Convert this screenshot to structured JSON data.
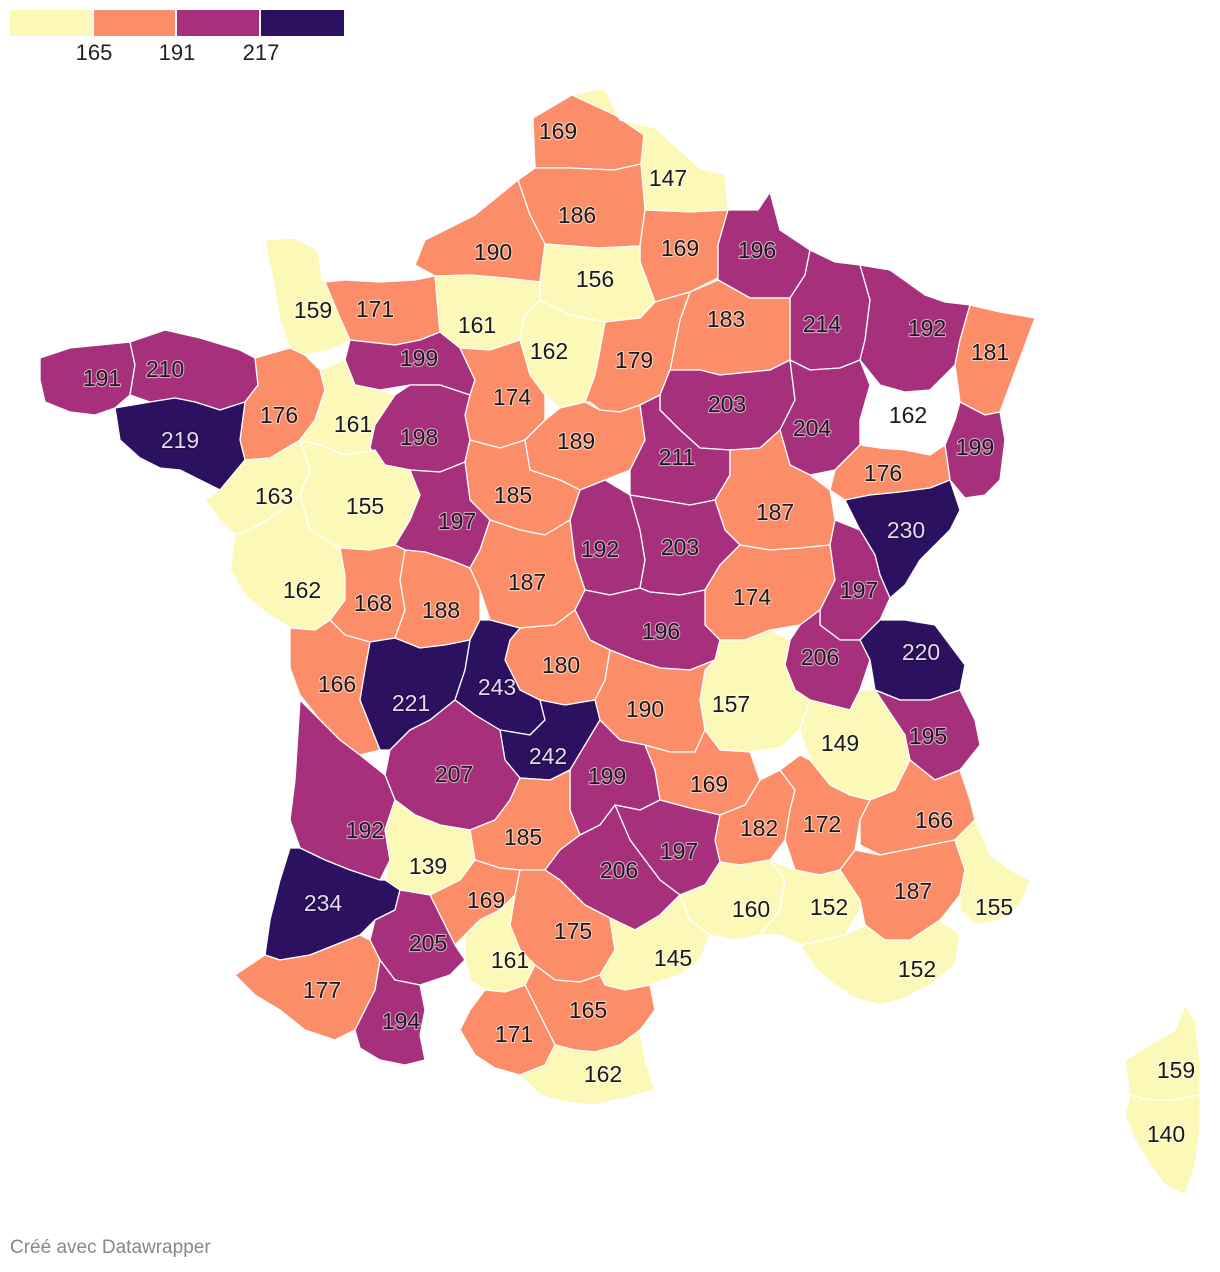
{
  "legend": {
    "colors": [
      "#fcf8b8",
      "#fb8d68",
      "#a7307d",
      "#2b1160"
    ],
    "ticks": [
      "165",
      "191",
      "217"
    ]
  },
  "credit": "Créé avec Datawrapper",
  "palette": {
    "low": "#fcf8b8",
    "mid_low": "#fb8d68",
    "mid_high": "#a7307d",
    "high": "#2b1160",
    "border": "#ffffff"
  },
  "departments": [
    {
      "value": 169
    },
    {
      "value": 147
    },
    {
      "value": 186
    },
    {
      "value": 190
    },
    {
      "value": 169
    },
    {
      "value": 196
    },
    {
      "value": 156
    },
    {
      "value": 159
    },
    {
      "value": 171
    },
    {
      "value": 161
    },
    {
      "value": 214
    },
    {
      "value": 183
    },
    {
      "value": 192
    },
    {
      "value": 181
    },
    {
      "value": 191
    },
    {
      "value": 210
    },
    {
      "value": 199
    },
    {
      "value": 162
    },
    {
      "value": 179
    },
    {
      "value": 176
    },
    {
      "value": 161
    },
    {
      "value": 174
    },
    {
      "value": 203
    },
    {
      "value": 162
    },
    {
      "value": 219
    },
    {
      "value": 198
    },
    {
      "value": 189
    },
    {
      "value": 204
    },
    {
      "value": 199
    },
    {
      "value": 211
    },
    {
      "value": 176
    },
    {
      "value": 163
    },
    {
      "value": 155
    },
    {
      "value": 185
    },
    {
      "value": 197
    },
    {
      "value": 187
    },
    {
      "value": 230
    },
    {
      "value": 192
    },
    {
      "value": 203
    },
    {
      "value": 162
    },
    {
      "value": 168
    },
    {
      "value": 188
    },
    {
      "value": 187
    },
    {
      "value": 174
    },
    {
      "value": 197
    },
    {
      "value": 196
    },
    {
      "value": 206
    },
    {
      "value": 220
    },
    {
      "value": 180
    },
    {
      "value": 166
    },
    {
      "value": 221
    },
    {
      "value": 243
    },
    {
      "value": 157
    },
    {
      "value": 190
    },
    {
      "value": 149
    },
    {
      "value": 195
    },
    {
      "value": 242
    },
    {
      "value": 207
    },
    {
      "value": 199
    },
    {
      "value": 169
    },
    {
      "value": 192
    },
    {
      "value": 182
    },
    {
      "value": 172
    },
    {
      "value": 166
    },
    {
      "value": 185
    },
    {
      "value": 139
    },
    {
      "value": 197
    },
    {
      "value": 206
    },
    {
      "value": 160
    },
    {
      "value": 152
    },
    {
      "value": 187
    },
    {
      "value": 155
    },
    {
      "value": 234
    },
    {
      "value": 169
    },
    {
      "value": 205
    },
    {
      "value": 175
    },
    {
      "value": 145
    },
    {
      "value": 161
    },
    {
      "value": 152
    },
    {
      "value": 177
    },
    {
      "value": 165
    },
    {
      "value": 171
    },
    {
      "value": 194
    },
    {
      "value": 162
    },
    {
      "value": 159
    },
    {
      "value": 140
    }
  ]
}
